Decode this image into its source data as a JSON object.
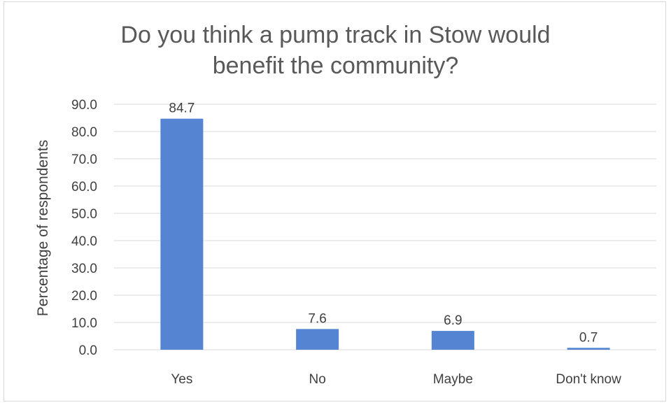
{
  "chart_data": {
    "type": "bar",
    "title_lines": [
      "Do you think a pump track in Stow would",
      "benefit the community?"
    ],
    "ylabel": "Percentage of respondents",
    "xlabel": "",
    "categories": [
      "Yes",
      "No",
      "Maybe",
      "Don't know"
    ],
    "values": [
      84.7,
      7.6,
      6.9,
      0.7
    ],
    "value_labels": [
      "84.7",
      "7.6",
      "6.9",
      "0.7"
    ],
    "ylim": [
      0,
      90
    ],
    "yticks": [
      "0.0",
      "10.0",
      "20.0",
      "30.0",
      "40.0",
      "50.0",
      "60.0",
      "70.0",
      "80.0",
      "90.0"
    ],
    "grid": true,
    "legend": "none",
    "bar_color": "#5585d2",
    "gridline_color": "#d9d9d9",
    "text_color": "#404040",
    "title_color": "#595959"
  }
}
